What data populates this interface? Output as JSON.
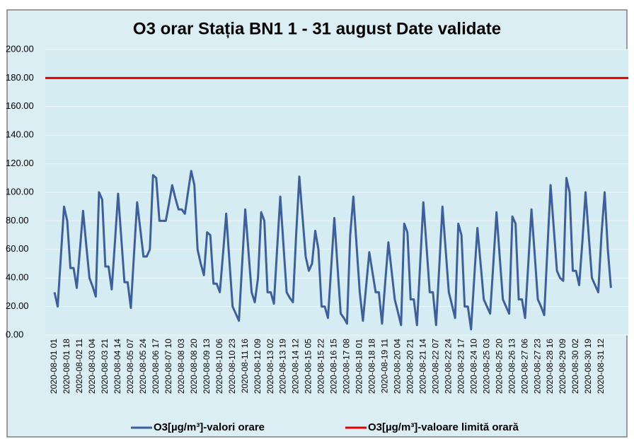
{
  "chart_data": {
    "type": "line",
    "title": "O3 orar Stația BN1 1 - 31 august Date validate",
    "categories": [
      "2020-08-01 01",
      null,
      null,
      null,
      "2020-08-01 18",
      null,
      null,
      null,
      "2020-08-02 11",
      null,
      null,
      null,
      "2020-08-03 04",
      null,
      null,
      null,
      "2020-08-03 21",
      null,
      null,
      null,
      "2020-08-04 14",
      null,
      null,
      null,
      "2020-08-05 07",
      null,
      null,
      null,
      "2020-08-05 24",
      null,
      null,
      null,
      "2020-08-06 17",
      null,
      null,
      null,
      "2020-08-07 10",
      null,
      null,
      null,
      "2020-08-08 03",
      null,
      null,
      null,
      "2020-08-08 20",
      null,
      null,
      null,
      "2020-08-09 13",
      null,
      null,
      null,
      "2020-08-10 06",
      null,
      null,
      null,
      "2020-08-10 23",
      null,
      null,
      null,
      "2020-08-11 16",
      null,
      null,
      null,
      "2020-08-12 09",
      null,
      null,
      null,
      "2020-08-13 02",
      null,
      null,
      null,
      "2020-08-13 19",
      null,
      null,
      null,
      "2020-08-14 12",
      null,
      null,
      null,
      "2020-08-15 05",
      null,
      null,
      null,
      "2020-08-15 22",
      null,
      null,
      null,
      "2020-08-16 15",
      null,
      null,
      null,
      "2020-08-17 08",
      null,
      null,
      null,
      "2020-08-18 01",
      null,
      null,
      null,
      "2020-08-18 18",
      null,
      null,
      null,
      "2020-08-19 11",
      null,
      null,
      null,
      "2020-08-20 04",
      null,
      null,
      null,
      "2020-08-20 21",
      null,
      null,
      null,
      "2020-08-21 14",
      null,
      null,
      null,
      "2020-08-22 07",
      null,
      null,
      null,
      "2020-08-22 24",
      null,
      null,
      null,
      "2020-08-23 17",
      null,
      null,
      null,
      "2020-08-24 10",
      null,
      null,
      null,
      "2020-08-25 03",
      null,
      null,
      null,
      "2020-08-25 20",
      null,
      null,
      null,
      "2020-08-26 13",
      null,
      null,
      null,
      "2020-08-27 06",
      null,
      null,
      null,
      "2020-08-27 23",
      null,
      null,
      null,
      "2020-08-28 16",
      null,
      null,
      null,
      "2020-08-29 09",
      null,
      null,
      null,
      "2020-08-30 02",
      null,
      null,
      null,
      "2020-08-30 19",
      null,
      null,
      null,
      "2020-08-31 12",
      null,
      null,
      null
    ],
    "series": [
      {
        "name": "O3[µg/m³]-valori orare",
        "color": "#3d5f9b",
        "values": [
          30,
          20,
          55,
          90,
          80,
          47,
          47,
          33,
          60,
          87,
          63,
          40,
          34,
          27,
          100,
          95,
          48,
          48,
          32,
          65,
          99,
          68,
          37,
          37,
          19,
          56,
          93,
          74,
          55,
          55,
          60,
          112,
          110,
          80,
          80,
          80,
          92,
          105,
          96,
          88,
          88,
          85,
          100,
          115,
          105,
          60,
          50,
          42,
          72,
          70,
          36,
          36,
          30,
          57,
          85,
          52,
          20,
          15,
          10,
          49,
          88,
          59,
          30,
          23,
          40,
          86,
          80,
          30,
          30,
          22,
          60,
          97,
          63,
          30,
          26,
          23,
          70,
          111,
          83,
          55,
          45,
          50,
          73,
          60,
          20,
          20,
          12,
          47,
          82,
          48,
          15,
          12,
          8,
          70,
          97,
          63,
          30,
          10,
          34,
          58,
          44,
          30,
          30,
          8,
          37,
          65,
          45,
          25,
          16,
          7,
          78,
          72,
          25,
          25,
          7,
          50,
          93,
          62,
          30,
          30,
          7,
          48,
          90,
          60,
          30,
          21,
          12,
          78,
          70,
          20,
          20,
          4,
          40,
          75,
          50,
          25,
          20,
          15,
          50,
          86,
          55,
          25,
          20,
          15,
          83,
          78,
          25,
          25,
          12,
          50,
          88,
          57,
          25,
          20,
          14,
          60,
          105,
          75,
          45,
          40,
          38,
          110,
          100,
          45,
          45,
          35,
          65,
          100,
          70,
          40,
          35,
          30,
          70,
          100,
          60,
          33
        ]
      }
    ],
    "limit_line": {
      "name": "O3[µg/m³]-valoare limită orară",
      "color": "#e00000",
      "value": 180
    },
    "ylim": [
      0,
      200
    ],
    "yticks": [
      {
        "value": 0,
        "label": "0.00"
      },
      {
        "value": 20,
        "label": "20.00"
      },
      {
        "value": 40,
        "label": "40.00"
      },
      {
        "value": 60,
        "label": "60.00"
      },
      {
        "value": 80,
        "label": "80.00"
      },
      {
        "value": 100,
        "label": "100.00"
      },
      {
        "value": 120,
        "label": "120.00"
      },
      {
        "value": 140,
        "label": "140.00"
      },
      {
        "value": 160,
        "label": "160.00"
      },
      {
        "value": 180,
        "label": "180.00"
      },
      {
        "value": 200,
        "label": "200.00"
      }
    ],
    "grid": true,
    "legend": "bottom"
  }
}
